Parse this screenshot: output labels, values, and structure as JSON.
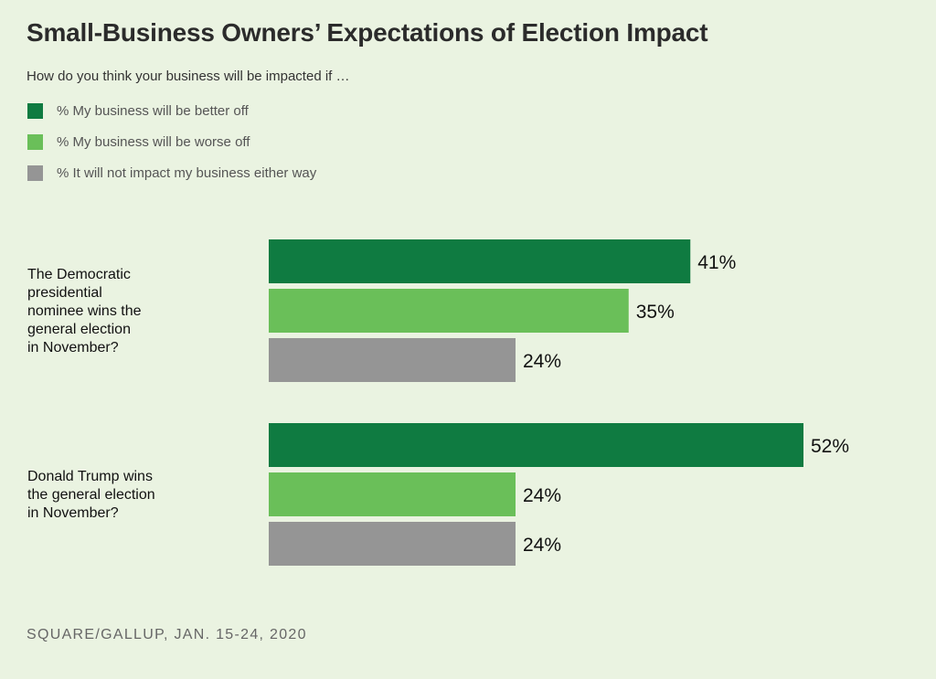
{
  "colors": {
    "background": "#eaf3e1",
    "better": "#0f7b41",
    "worse": "#6abf59",
    "neither": "#959595"
  },
  "title": "Small-Business Owners’ Expectations of Election Impact",
  "subtitle": "How do you think your business will be impacted if …",
  "legend": [
    {
      "label": "% My business will be better off",
      "color": "#0f7b41"
    },
    {
      "label": "% My business will be worse off",
      "color": "#6abf59"
    },
    {
      "label": "% It will not impact my business either way",
      "color": "#959595"
    }
  ],
  "source": "SQUARE/GALLUP, JAN. 15-24, 2020",
  "chart_data": {
    "type": "bar",
    "orientation": "horizontal",
    "categories": [
      [
        "The Democratic",
        "presidential",
        "nominee wins the",
        "general election",
        "in November?"
      ],
      [
        "Donald Trump wins",
        "the general election",
        "in November?"
      ]
    ],
    "series": [
      {
        "name": "% My business will be better off",
        "color": "#0f7b41",
        "values": [
          41,
          52
        ]
      },
      {
        "name": "% My business will be worse off",
        "color": "#6abf59",
        "values": [
          35,
          24
        ]
      },
      {
        "name": "% It will not impact my business either way",
        "color": "#959595",
        "values": [
          24,
          24
        ]
      }
    ],
    "value_suffix": "%",
    "xlim": [
      0,
      100
    ],
    "grid": false,
    "legend_position": "top-left"
  }
}
